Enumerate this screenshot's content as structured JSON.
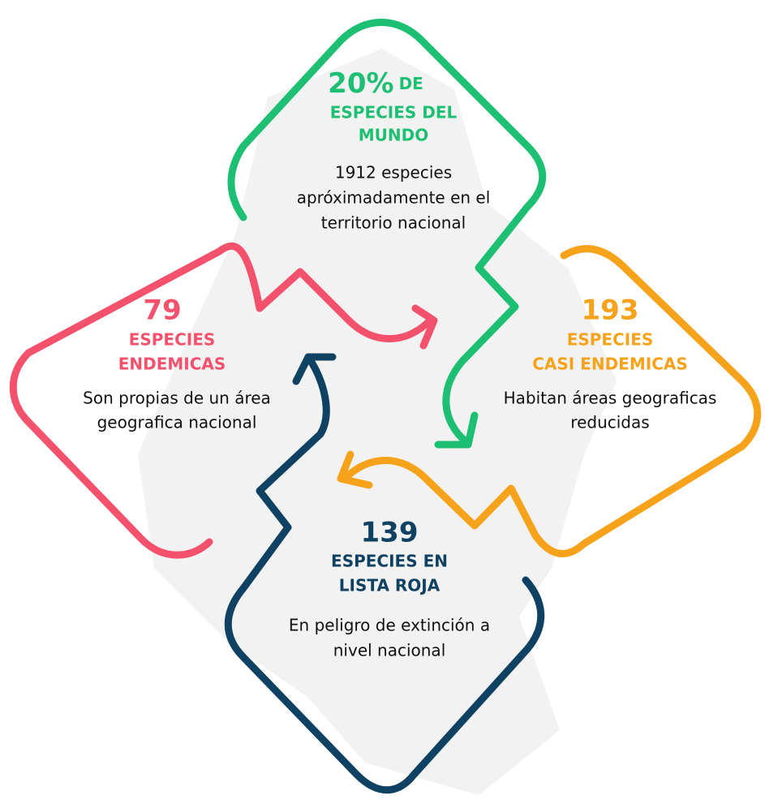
{
  "nodes": [
    {
      "number": "20%",
      "number_suffix": "DE",
      "label": [
        "ESPECIES DEL",
        "MUNDO"
      ],
      "description": [
        "1912 especies",
        "apróximadamente en el",
        "territorio nacional"
      ]
    },
    {
      "number": "79",
      "label": [
        "ESPECIES",
        "ENDEMICAS"
      ],
      "description": [
        "Son propias de un área",
        "geografica nacional"
      ]
    },
    {
      "number": "193",
      "label": [
        "ESPECIES",
        "CASI ENDEMICAS"
      ],
      "description": [
        "Habitan áreas geograficas",
        "reducidas"
      ]
    },
    {
      "number": "139",
      "label": [
        "ESPECIES EN",
        "LISTA ROJA"
      ],
      "description": [
        "En peligro de extinción a",
        "nivel nacional"
      ]
    }
  ]
}
